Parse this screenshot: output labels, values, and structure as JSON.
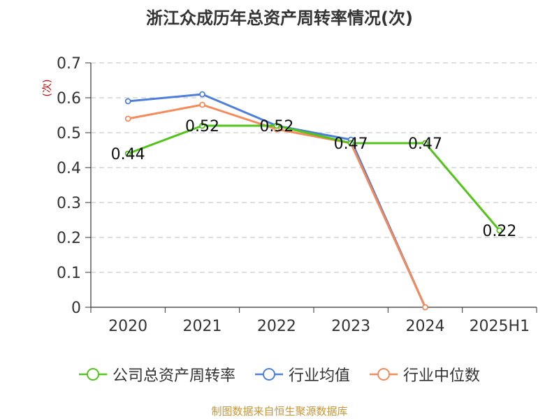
{
  "chart_data": {
    "type": "line",
    "title": "浙江众成历年总资产周转率情况(次)",
    "ylabel": "(次)",
    "xlabel": "",
    "categories": [
      "2020",
      "2021",
      "2022",
      "2023",
      "2024",
      "2025H1"
    ],
    "ylim": [
      0,
      0.7
    ],
    "yticks": [
      "0",
      "0.1",
      "0.2",
      "0.3",
      "0.4",
      "0.5",
      "0.6",
      "0.7"
    ],
    "grid": true,
    "legend_position": "bottom",
    "series": [
      {
        "name": "公司总资产周转率",
        "color": "#52c41a",
        "values": [
          0.44,
          0.52,
          0.52,
          0.47,
          0.47,
          0.22
        ],
        "labels": [
          "0.44",
          "0.52",
          "0.52",
          "0.47",
          "0.47",
          "0.22"
        ]
      },
      {
        "name": "行业均值",
        "color": "#4e7fdc",
        "values": [
          0.59,
          0.61,
          0.52,
          0.48,
          0.0,
          null
        ]
      },
      {
        "name": "行业中位数",
        "color": "#f58b5a",
        "values": [
          0.54,
          0.58,
          0.51,
          0.47,
          0.0,
          null
        ]
      }
    ]
  },
  "source": "制图数据来自恒生聚源数据库"
}
